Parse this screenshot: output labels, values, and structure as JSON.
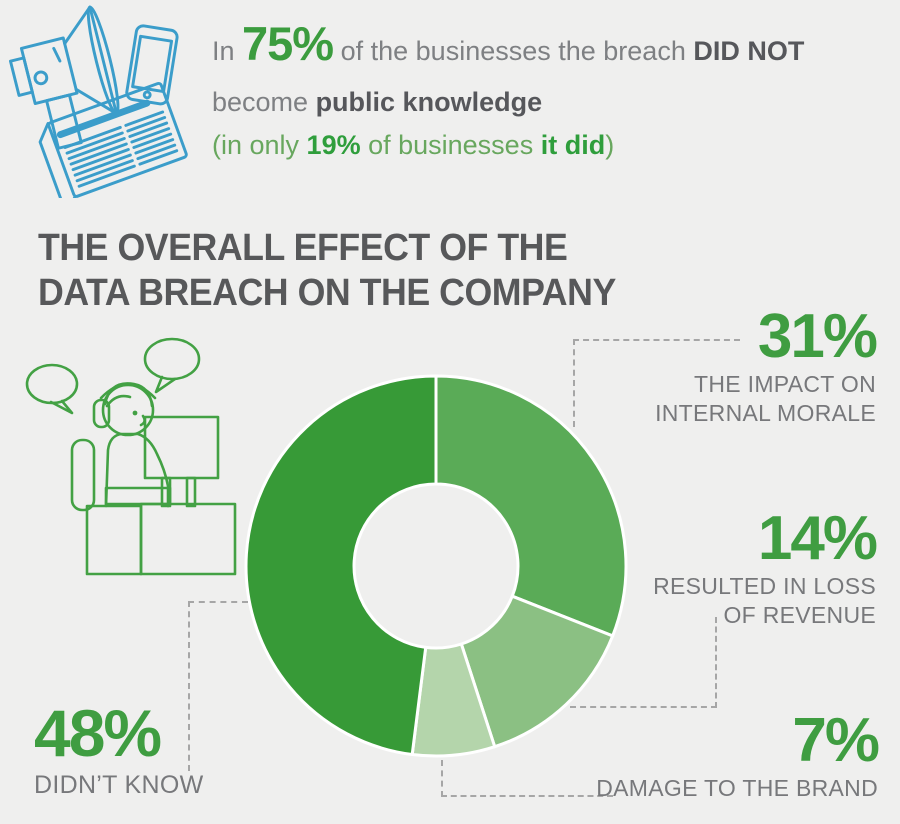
{
  "header": {
    "l1": [
      "In ",
      "75%",
      " of the businesses the breach ",
      "DID NOT"
    ],
    "l2": [
      "become ",
      "public knowledge"
    ],
    "l3": [
      "(in only ",
      "19%",
      " of businesses ",
      "it did",
      ")"
    ]
  },
  "title": {
    "line1": "THE OVERALL EFFECT OF THE",
    "line2": "DATA BREACH ON THE COMPANY"
  },
  "icons": {
    "cluster": [
      "megaphone-icon",
      "smartphone-icon",
      "newspaper-icon"
    ],
    "accent_blue": "#3b9dca",
    "illustration_green": "#43a144"
  },
  "chart_data": {
    "type": "pie",
    "variant": "donut",
    "title": "THE OVERALL EFFECT OF THE DATA BREACH ON THE COMPANY",
    "start_angle_deg": 0,
    "direction": "clockwise",
    "inner_radius_ratio": 0.43,
    "legend_position": "outside-callouts",
    "number_color": "#3f9d41",
    "label_color": "#77787b",
    "segments": [
      {
        "value": 31,
        "pct_text": "31%",
        "label_lines": [
          "THE IMPACT ON",
          "INTERNAL MORALE"
        ],
        "color": "#5aab57"
      },
      {
        "value": 14,
        "pct_text": "14%",
        "label_lines": [
          "RESULTED IN LOSS",
          "OF REVENUE"
        ],
        "color": "#8bc083"
      },
      {
        "value": 7,
        "pct_text": "7%",
        "label_lines": [
          "DAMAGE TO THE BRAND"
        ],
        "color": "#b4d5ab"
      },
      {
        "value": 48,
        "pct_text": "48%",
        "label_lines": [
          "DIDN’T KNOW"
        ],
        "color": "#379a37"
      }
    ]
  }
}
